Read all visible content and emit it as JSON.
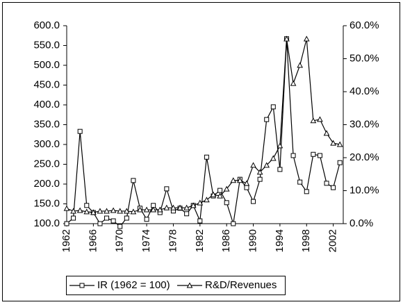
{
  "chart_data": {
    "type": "line",
    "x": [
      1962,
      1963,
      1964,
      1965,
      1966,
      1967,
      1968,
      1969,
      1970,
      1971,
      1972,
      1973,
      1974,
      1975,
      1976,
      1977,
      1978,
      1979,
      1980,
      1981,
      1982,
      1983,
      1984,
      1985,
      1986,
      1987,
      1988,
      1989,
      1990,
      1991,
      1992,
      1993,
      1994,
      1995,
      1996,
      1997,
      1998,
      1999,
      2000,
      2001,
      2002,
      2003
    ],
    "series": [
      {
        "name": "IR (1962 = 100)",
        "color": "#000000",
        "marker": "square",
        "values": [
          100,
          114,
          333,
          146,
          128,
          100,
          114,
          107,
          93,
          114,
          209,
          139,
          111,
          146,
          128,
          188,
          132,
          139,
          125,
          146,
          107,
          268,
          170,
          184,
          153,
          100,
          212,
          191,
          156,
          212,
          363,
          395,
          237,
          567,
          272,
          205,
          181,
          275,
          272,
          202,
          191,
          254
        ]
      },
      {
        "name": "R&D/Revenues",
        "color": "#000000",
        "marker": "triangle",
        "axis": "y2",
        "values": [
          4.6,
          3.8,
          4.0,
          3.6,
          3.4,
          3.8,
          3.8,
          4.0,
          3.8,
          3.8,
          3.6,
          4.2,
          4.2,
          4.2,
          4.2,
          4.8,
          4.8,
          4.8,
          4.8,
          5.5,
          6.3,
          7.2,
          8.8,
          8.4,
          10.5,
          13.1,
          13.1,
          12.2,
          17.7,
          15.6,
          17.7,
          19.8,
          23.6,
          56.0,
          42.5,
          48.0,
          56.0,
          31.2,
          31.6,
          27.4,
          24.4,
          24.0
        ]
      }
    ],
    "xlim": [
      1962,
      2003.5
    ],
    "xticks": [
      1962,
      1966,
      1970,
      1974,
      1978,
      1982,
      1986,
      1990,
      1994,
      1998,
      2002
    ],
    "ylim": [
      100,
      600
    ],
    "yticks": [
      {
        "value": 100,
        "label": "100.0"
      },
      {
        "value": 150,
        "label": "150.0"
      },
      {
        "value": 200,
        "label": "200.0"
      },
      {
        "value": 250,
        "label": "250.0"
      },
      {
        "value": 300,
        "label": "300.0"
      },
      {
        "value": 350,
        "label": "350.0"
      },
      {
        "value": 400,
        "label": "400.0"
      },
      {
        "value": 450,
        "label": "450.0"
      },
      {
        "value": 500,
        "label": "500.0"
      },
      {
        "value": 550,
        "label": "550.0"
      },
      {
        "value": 600,
        "label": "600.0"
      }
    ],
    "y2lim": [
      0,
      60
    ],
    "y2ticks": [
      {
        "value": 0,
        "label": "0.0%"
      },
      {
        "value": 10,
        "label": "10.0%"
      },
      {
        "value": 20,
        "label": "20.0%"
      },
      {
        "value": 30,
        "label": "30.0%"
      },
      {
        "value": 40,
        "label": "40.0%"
      },
      {
        "value": 50,
        "label": "50.0%"
      },
      {
        "value": 60,
        "label": "60.0%"
      }
    ],
    "legend": "bottom",
    "grid": false
  }
}
